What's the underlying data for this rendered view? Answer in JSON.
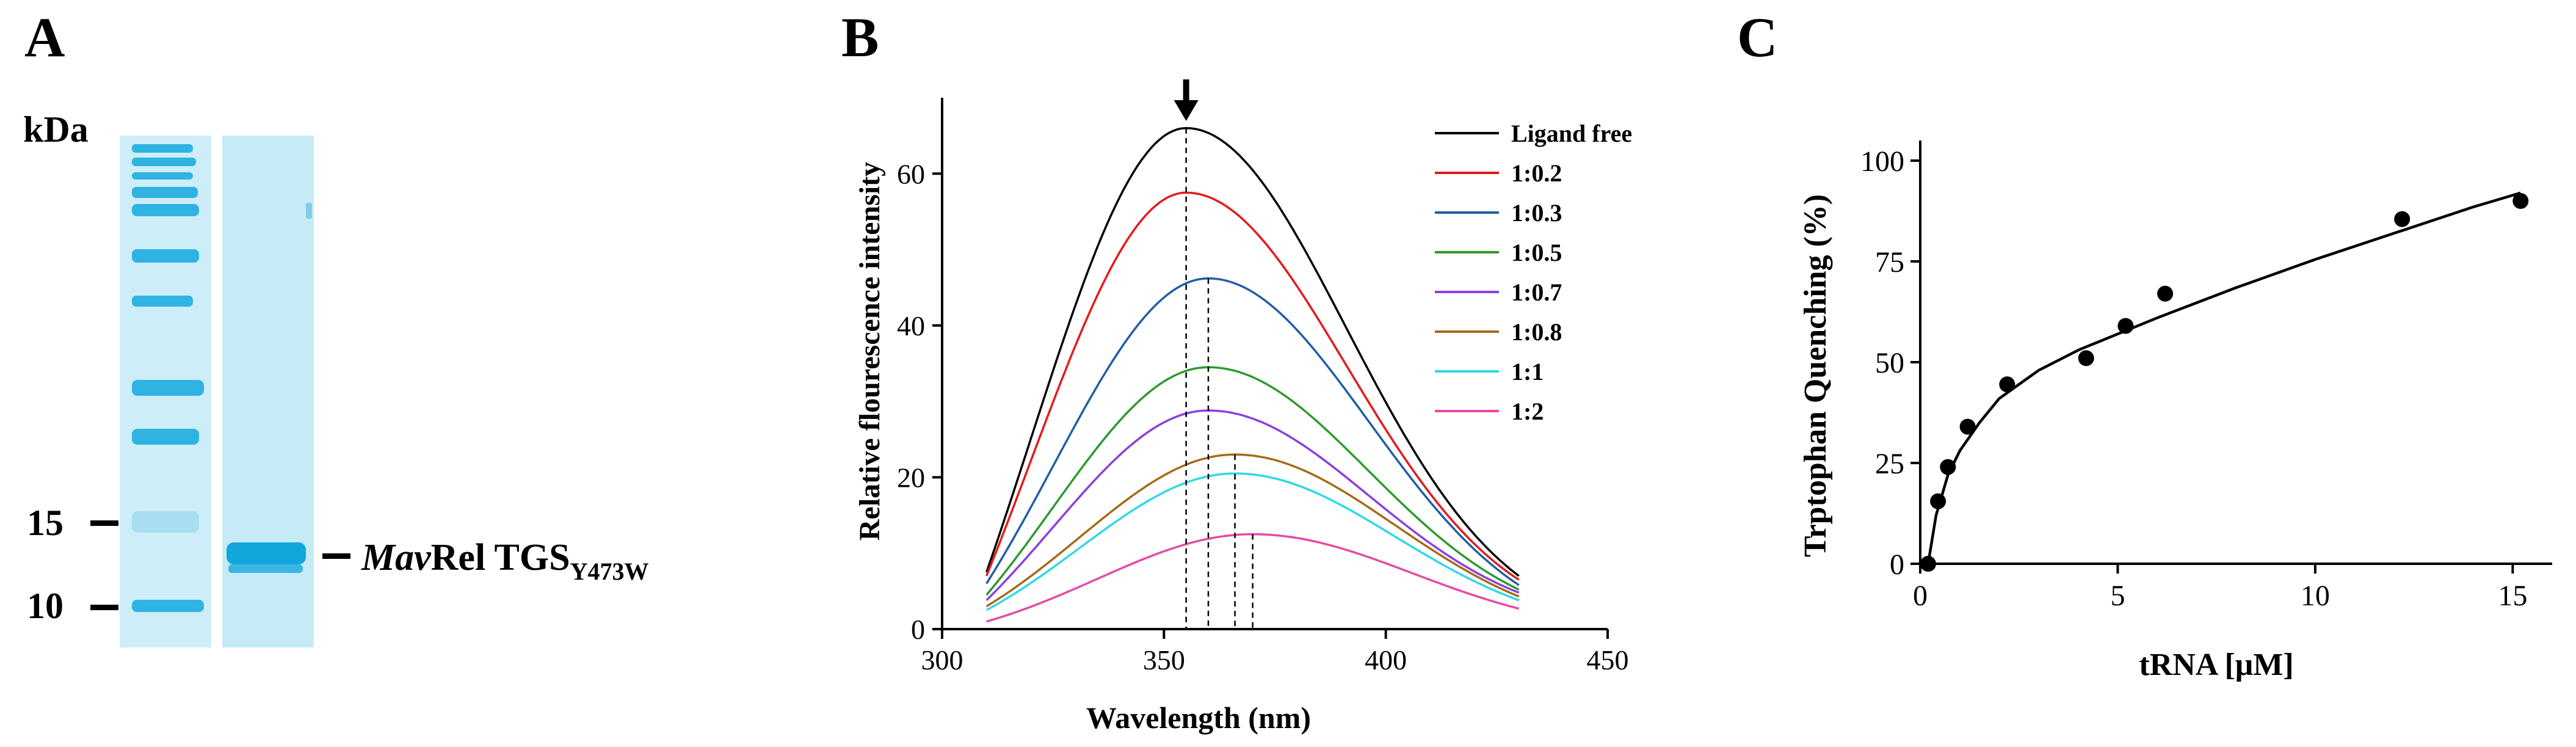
{
  "panels": {
    "a": {
      "letter": "A",
      "unit_label": "kDa",
      "markers": [
        "15",
        "10"
      ],
      "band_name_italic": "Mav",
      "band_name_rest": "Rel TGS",
      "band_subscript": "Y473W",
      "colors": {
        "gel": "#c9ecf7",
        "band": "#11a7dc"
      }
    },
    "b": {
      "letter": "B"
    },
    "c": {
      "letter": "C"
    }
  },
  "chart_data": [
    {
      "id": "fluorescence",
      "type": "line",
      "title": "",
      "xlabel": "Wavelength (nm)",
      "ylabel": "Relative flourescence intensity",
      "xlim": [
        300,
        450
      ],
      "ylim": [
        0,
        70
      ],
      "xticks": [
        300,
        350,
        400,
        450
      ],
      "yticks": [
        0,
        20,
        40,
        60
      ],
      "x_range": [
        310,
        430
      ],
      "legend_position": "top-right",
      "arrow_at": 355,
      "series": [
        {
          "name": "Ligand free",
          "peak_x": 355,
          "peak_y": 66.0,
          "start_y": 7.5,
          "end_y": 7.0,
          "color": "#000000"
        },
        {
          "name": "1:0.2",
          "peak_x": 355,
          "peak_y": 57.5,
          "start_y": 7.0,
          "end_y": 6.5,
          "color": "#e41a1c"
        },
        {
          "name": "1:0.3",
          "peak_x": 360,
          "peak_y": 46.2,
          "start_y": 6.0,
          "end_y": 5.8,
          "color": "#1f5fa6"
        },
        {
          "name": "1:0.5",
          "peak_x": 360,
          "peak_y": 34.5,
          "start_y": 4.5,
          "end_y": 5.2,
          "color": "#2e9a2e"
        },
        {
          "name": "1:0.7",
          "peak_x": 360,
          "peak_y": 28.8,
          "start_y": 3.8,
          "end_y": 4.8,
          "color": "#8b3fe0"
        },
        {
          "name": "1:0.8",
          "peak_x": 366,
          "peak_y": 23.0,
          "start_y": 3.0,
          "end_y": 4.3,
          "color": "#a66a18"
        },
        {
          "name": "1:1",
          "peak_x": 366,
          "peak_y": 20.5,
          "start_y": 2.5,
          "end_y": 3.8,
          "color": "#2fd8e8"
        },
        {
          "name": "1:2",
          "peak_x": 370,
          "peak_y": 12.5,
          "start_y": 1.0,
          "end_y": 2.7,
          "color": "#e64aa6"
        }
      ],
      "dashed_lines_x": [
        355,
        360,
        366,
        370
      ]
    },
    {
      "id": "quenching",
      "type": "scatter",
      "title": "",
      "xlabel": "tRNA [μM]",
      "ylabel": "Trptophan Quenching (%)",
      "xlim": [
        0,
        16
      ],
      "ylim": [
        0,
        105
      ],
      "xticks": [
        0,
        5,
        10,
        15
      ],
      "yticks": [
        0,
        25,
        50,
        75,
        100
      ],
      "points": {
        "x": [
          0.2,
          0.45,
          0.7,
          1.2,
          2.2,
          4.2,
          5.2,
          6.2,
          12.2,
          15.2
        ],
        "y": [
          0,
          15.5,
          24,
          34,
          44.5,
          51,
          59,
          67,
          85.5,
          90
        ]
      },
      "fit_curve": {
        "x": [
          0.2,
          0.4,
          0.7,
          1.0,
          1.5,
          2.0,
          3.0,
          4.0,
          5.0,
          6.0,
          8.0,
          10.0,
          12.0,
          14.0,
          15.2
        ],
        "y": [
          0,
          12,
          22,
          28,
          35,
          41,
          48,
          53,
          57,
          61,
          68.5,
          75.5,
          82,
          88.5,
          92
        ]
      },
      "color": "#000000"
    }
  ]
}
